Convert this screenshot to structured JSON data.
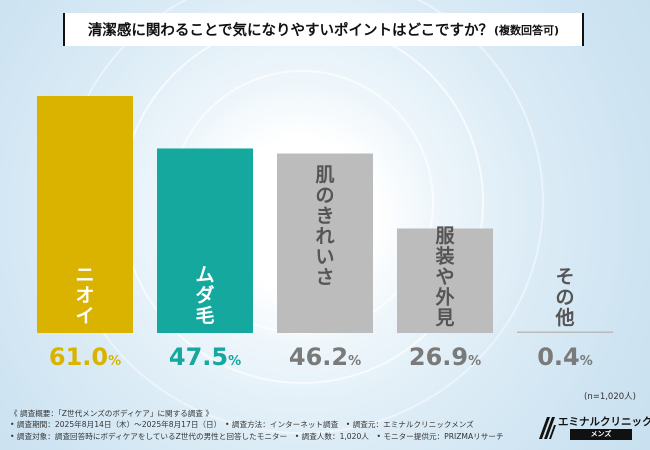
{
  "title": {
    "main": "清潔感に関わることで気になりやすいポイントはどこですか？",
    "sub": "(複数回答可)"
  },
  "chart_data": {
    "type": "bar",
    "categories": [
      "ニオイ",
      "ムダ毛",
      "肌のきれいさ",
      "服装や外見",
      "その他"
    ],
    "values": [
      61.0,
      47.5,
      46.2,
      26.9,
      0.4
    ],
    "value_labels": [
      "61.0%",
      "47.5%",
      "46.2%",
      "26.9%",
      "0.4%"
    ],
    "unit": "%",
    "ylim": [
      0,
      61.0
    ],
    "grid": false,
    "colors": [
      "#d9b300",
      "#15a89e",
      "#bcbcbc",
      "#bcbcbc",
      "#bcbcbc"
    ],
    "value_label_colors": [
      "#d9b300",
      "#15a89e",
      "#7a7a7a",
      "#7a7a7a",
      "#7a7a7a"
    ],
    "category_label_colors": [
      "#ffffff",
      "#ffffff",
      "#555555",
      "#555555",
      "#555555"
    ]
  },
  "sample": "(n=1,020人)",
  "footnote": [
    "《 調査概要：「Z世代メンズのボディケア」に関する調査 》",
    "• 調査期間：2025年8月14日（木）〜2025年8月17日（日）　• 調査方法：インターネット調査　• 調査元：エミナルクリニックメンズ",
    "• 調査対象：調査回答時にボディケアをしているZ世代の男性と回答したモニター　• 調査人数：1,020人　• モニター提供元：PRIZMAリサーチ"
  ],
  "logo": {
    "name": "エミナルクリニック",
    "sub": "メンズ"
  }
}
